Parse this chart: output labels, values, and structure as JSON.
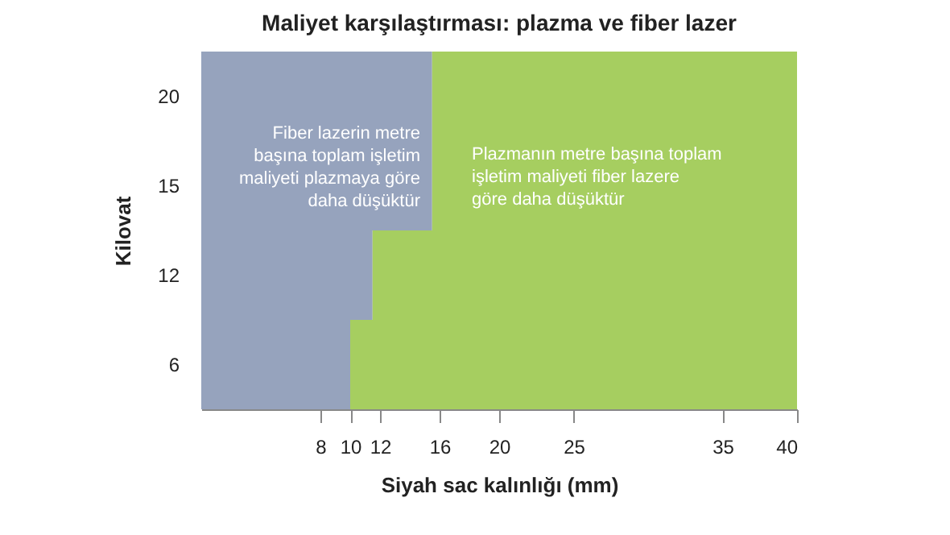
{
  "chart_data": {
    "type": "bar",
    "orientation": "horizontal",
    "stacked": true,
    "title": "Maliyet karşılaştırması: plazma ve fiber lazer",
    "xlabel": "Siyah sac kalınlığı (mm)",
    "ylabel": "Kilovat",
    "categories": [
      "20",
      "15",
      "12",
      "6"
    ],
    "series": [
      {
        "color": "#96a3bd",
        "values": [
          15.5,
          15.5,
          11.5,
          10
        ]
      },
      {
        "color": "#a6ce60",
        "values": [
          24.5,
          24.5,
          28.5,
          30
        ]
      }
    ],
    "xlim": [
      0,
      40
    ],
    "xticks": [
      8,
      10,
      12,
      16,
      20,
      25,
      35,
      40
    ],
    "grid": false,
    "legend": false,
    "annotations": [
      "Fiber lazerin metre başına toplam işletim maliyeti plazmaya göre daha düşüktür",
      "Plazmanın metre başına toplam işletim maliyeti fiber lazere göre daha düşüktür"
    ]
  }
}
